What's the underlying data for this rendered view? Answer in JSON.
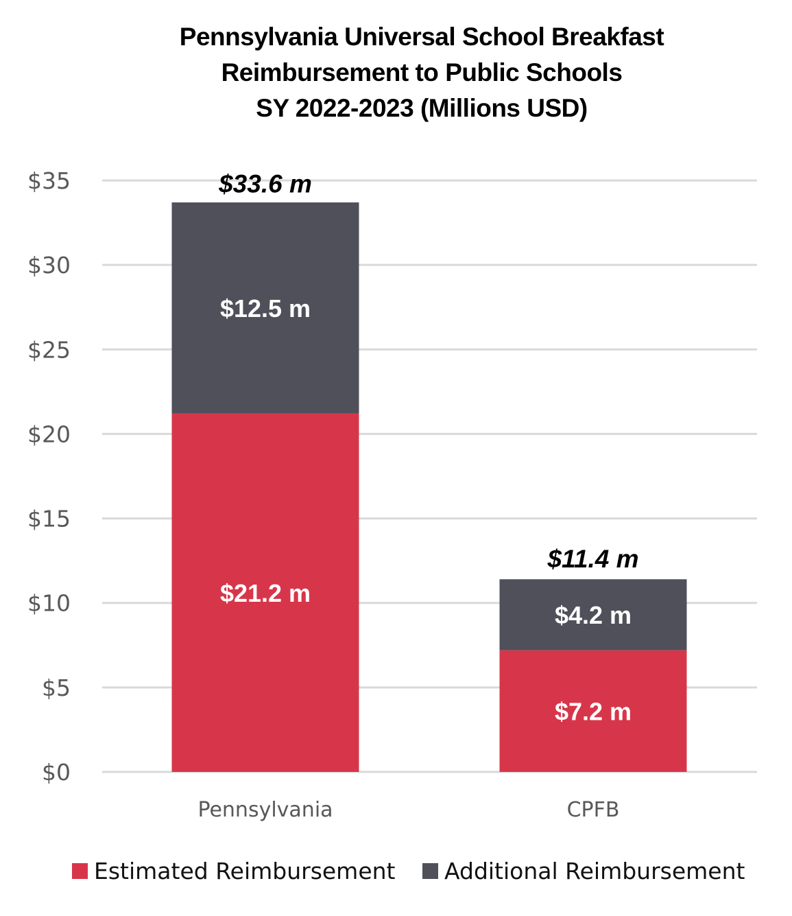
{
  "chart_data": {
    "type": "bar",
    "stacked": true,
    "title": [
      "Pennsylvania Universal School Breakfast",
      "Reimbursement to Public Schools",
      "SY 2022-2023 (Millions USD)"
    ],
    "xlabel": "",
    "ylabel": "",
    "categories": [
      "Pennsylvania",
      "CPFB"
    ],
    "series": [
      {
        "name": "Estimated Reimbursement",
        "color": "#d7364a",
        "values": [
          21.2,
          7.2
        ],
        "labels": [
          "$21.2 m",
          "$7.2 m"
        ]
      },
      {
        "name": "Additional Reimbursement",
        "color": "#4f505a",
        "values": [
          12.5,
          4.2
        ],
        "labels": [
          "$12.5 m",
          "$4.2 m"
        ]
      }
    ],
    "totals": [
      33.6,
      11.4
    ],
    "total_labels": [
      "$33.6 m",
      "$11.4 m"
    ],
    "ylim": [
      0,
      35
    ],
    "yticks": [
      0,
      5,
      10,
      15,
      20,
      25,
      30,
      35
    ],
    "ytick_labels": [
      "$0",
      "$5",
      "$10",
      "$15",
      "$20",
      "$25",
      "$30",
      "$35"
    ],
    "grid": true,
    "legend_position": "bottom"
  }
}
